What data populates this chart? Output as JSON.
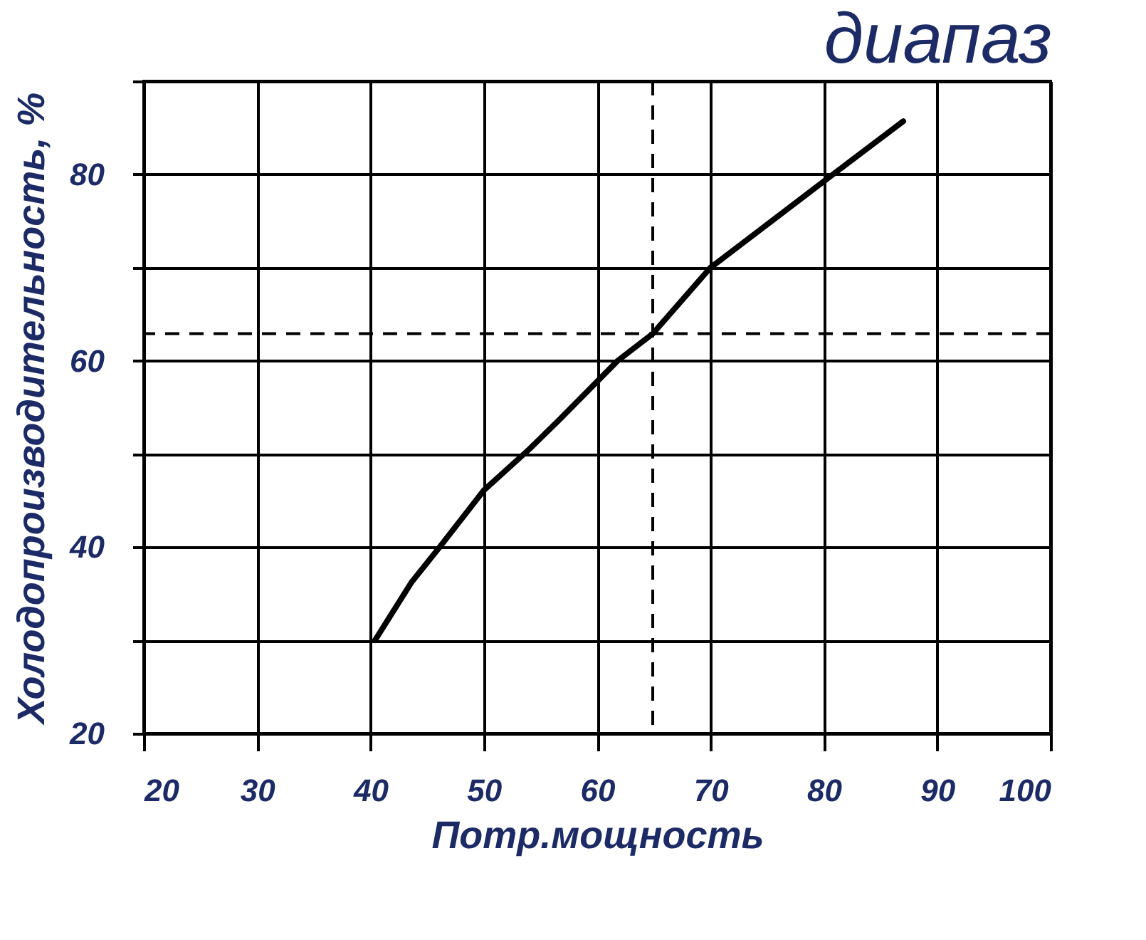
{
  "chart_data": {
    "type": "line",
    "title": "диапаз",
    "xlabel": "Потр.мощность",
    "ylabel": "Холодопроизводительность, %",
    "x": [
      40.4,
      43.6,
      46.1,
      50,
      54,
      56.6,
      61.8,
      64.9,
      70,
      80.8,
      87
    ],
    "series": [
      {
        "color": "#000000",
        "values": [
          30,
          36.2,
          40,
          46.1,
          50.5,
          53.6,
          60,
          62.9,
          70,
          80,
          85.7
        ]
      }
    ],
    "xlim": [
      20,
      100
    ],
    "xticks": [
      20,
      30,
      40,
      50,
      60,
      70,
      80,
      90,
      100
    ],
    "ylim": [
      20,
      90
    ],
    "yticks": [
      20,
      {
        "value": 30,
        "label": null
      },
      40,
      {
        "value": 50,
        "label": null
      },
      60,
      {
        "value": 70,
        "label": null
      },
      80,
      {
        "value": 90,
        "label": null
      }
    ],
    "grid": true,
    "ref_lines": [
      {
        "axis": "y",
        "value": 62.9,
        "line_style": "dashed",
        "color": "#000000"
      },
      {
        "axis": "x",
        "value": 64.9,
        "line_style": "dashed",
        "color": "#000000"
      }
    ]
  }
}
